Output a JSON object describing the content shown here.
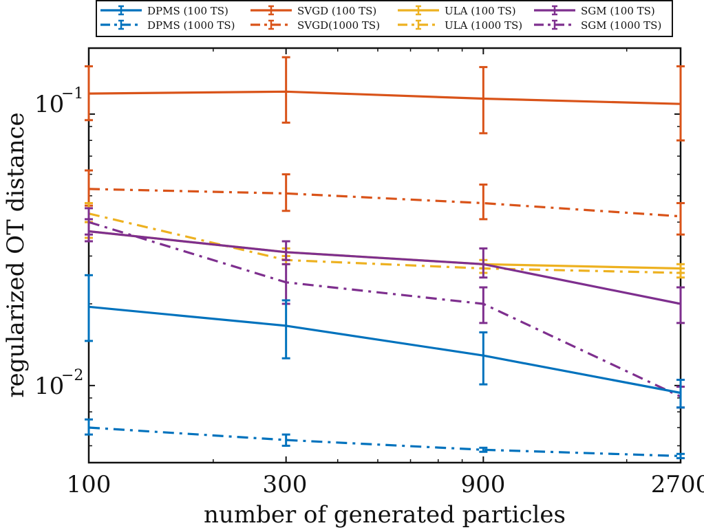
{
  "chart_data": {
    "type": "line",
    "title": "",
    "xlabel": "number of generated particles",
    "ylabel": "regularized OT distance",
    "xscale": "log",
    "yscale": "log",
    "x": [
      100,
      300,
      900,
      2700
    ],
    "x_tick_labels": [
      "100",
      "300",
      "900",
      "2700"
    ],
    "xlim": [
      100,
      2700
    ],
    "ylim": [
      0.0052,
      0.175
    ],
    "y_tick_labels": [
      {
        "value": 0.1,
        "base": "10",
        "exp": "−1"
      },
      {
        "value": 0.01,
        "base": "10",
        "exp": "−2"
      }
    ],
    "grid": false,
    "legend_position": "top",
    "series": [
      {
        "name": "DPMS (100 TS)",
        "color": "#0072BD",
        "style": "solid",
        "values": [
          0.0195,
          0.0166,
          0.0129,
          0.0094
        ],
        "err_low": [
          0.0146,
          0.0126,
          0.0101,
          0.0083
        ],
        "err_high": [
          0.0255,
          0.0206,
          0.0157,
          0.0105
        ]
      },
      {
        "name": "DPMS (1000 TS)",
        "color": "#0072BD",
        "style": "dashdot",
        "values": [
          0.007,
          0.0063,
          0.0058,
          0.0055
        ],
        "err_low": [
          0.0066,
          0.006,
          0.0057,
          0.0054
        ],
        "err_high": [
          0.0075,
          0.0066,
          0.0059,
          0.0056
        ]
      },
      {
        "name": "SVGD (100 TS)",
        "color": "#D95319",
        "style": "solid",
        "values": [
          0.119,
          0.121,
          0.114,
          0.109
        ],
        "err_low": [
          0.095,
          0.093,
          0.085,
          0.08
        ],
        "err_high": [
          0.15,
          0.162,
          0.149,
          0.15
        ]
      },
      {
        "name": "SVGD(1000 TS)",
        "color": "#D95319",
        "style": "dashdot",
        "values": [
          0.053,
          0.051,
          0.047,
          0.042
        ],
        "err_low": [
          0.046,
          0.044,
          0.041,
          0.036
        ],
        "err_high": [
          0.062,
          0.06,
          0.055,
          0.047
        ]
      },
      {
        "name": "ULA (100 TS)",
        "color": "#EDB120",
        "style": "solid",
        "values": [
          0.037,
          0.031,
          0.028,
          0.027
        ],
        "err_low": [
          0.035,
          0.03,
          0.027,
          0.026
        ],
        "err_high": [
          0.04,
          0.032,
          0.029,
          0.028
        ]
      },
      {
        "name": "ULA (1000 TS)",
        "color": "#EDB120",
        "style": "dashdot",
        "values": [
          0.043,
          0.029,
          0.027,
          0.026
        ],
        "err_low": [
          0.04,
          0.028,
          0.026,
          0.025
        ],
        "err_high": [
          0.047,
          0.03,
          0.028,
          0.027
        ]
      },
      {
        "name": "SGM (100 TS)",
        "color": "#7E2F8E",
        "style": "solid",
        "values": [
          0.037,
          0.031,
          0.028,
          0.02
        ],
        "err_low": [
          0.034,
          0.029,
          0.025,
          0.017
        ],
        "err_high": [
          0.041,
          0.034,
          0.032,
          0.023
        ]
      },
      {
        "name": "SGM (1000 TS)",
        "color": "#7E2F8E",
        "style": "dashdot",
        "values": [
          0.04,
          0.024,
          0.02,
          0.0091
        ],
        "err_low": [
          0.036,
          0.02,
          0.017,
          0.0083
        ],
        "err_high": [
          0.045,
          0.028,
          0.023,
          0.0099
        ]
      }
    ]
  }
}
